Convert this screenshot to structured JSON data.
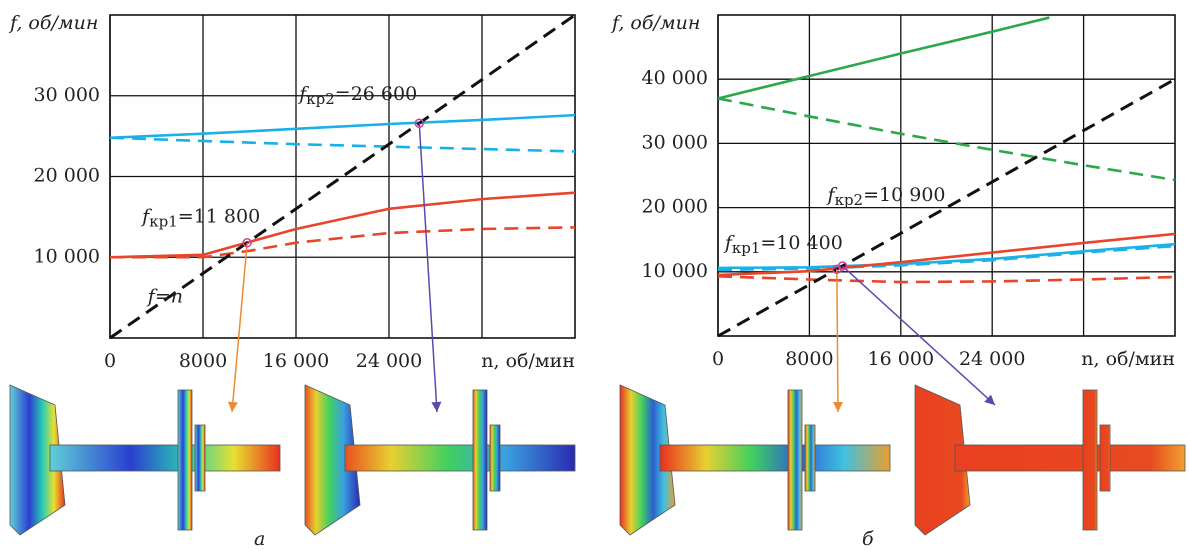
{
  "chart_data": [
    {
      "type": "line",
      "y_label": "f, об/мин",
      "x_label": "n, об/мин",
      "panel_label": "а",
      "xlim": [
        0,
        40000
      ],
      "ylim": [
        0,
        40000
      ],
      "xticks": [
        0,
        8000,
        {
          "value": 16000,
          "label": "16 000"
        },
        {
          "value": 24000,
          "label": "24 000"
        },
        {
          "value": 32000,
          "label": null
        }
      ],
      "yticks": [
        {
          "value": 10000,
          "label": "10 000"
        },
        {
          "value": 20000,
          "label": "20 000"
        },
        {
          "value": 30000,
          "label": "30 000"
        }
      ],
      "grid": true,
      "series": [
        {
          "color": "#1ab0e8",
          "dash": false,
          "x": [
            0,
            8000,
            16000,
            24000,
            32000,
            40000
          ],
          "values": [
            24800,
            25300,
            25900,
            26500,
            27000,
            27600
          ]
        },
        {
          "color": "#1ab0e8",
          "dash": true,
          "x": [
            0,
            8000,
            16000,
            24000,
            32000,
            40000
          ],
          "values": [
            24800,
            24400,
            24000,
            23700,
            23400,
            23100
          ]
        },
        {
          "color": "#e8452a",
          "dash": false,
          "x": [
            0,
            8000,
            12000,
            16000,
            24000,
            32000,
            40000
          ],
          "values": [
            10000,
            10300,
            11900,
            13500,
            16000,
            17200,
            18000
          ]
        },
        {
          "color": "#e8452a",
          "dash": true,
          "x": [
            0,
            8000,
            12000,
            16000,
            24000,
            32000,
            40000
          ],
          "values": [
            10000,
            10000,
            10800,
            11800,
            13000,
            13500,
            13700
          ]
        },
        {
          "name": "f=n",
          "color": "#111111",
          "dash": true,
          "x": [
            0,
            40000
          ],
          "values": [
            0,
            40000
          ]
        }
      ],
      "critical": [
        {
          "symbol": "f",
          "sub": "кр1",
          "value_label": "=11 800",
          "x": 11800,
          "y": 11800
        },
        {
          "symbol": "f",
          "sub": "кр2",
          "value_label": "=26 600",
          "x": 26600,
          "y": 26600
        }
      ]
    },
    {
      "type": "line",
      "y_label": "f, об/мин",
      "x_label": "n, об/мин",
      "panel_label": "б",
      "xlim": [
        0,
        40000
      ],
      "ylim": [
        0,
        50000
      ],
      "xticks": [
        0,
        8000,
        {
          "value": 16000,
          "label": "16 000"
        },
        {
          "value": 24000,
          "label": "24 000"
        },
        {
          "value": 32000,
          "label": null
        }
      ],
      "yticks": [
        {
          "value": 10000,
          "label": "10 000"
        },
        {
          "value": 20000,
          "label": "20 000"
        },
        {
          "value": 30000,
          "label": "30 000"
        },
        {
          "value": 40000,
          "label": "40 000"
        }
      ],
      "grid": true,
      "series": [
        {
          "color": "#2aa84a",
          "dash": false,
          "x": [
            0,
            8000,
            16000,
            24000,
            29000
          ],
          "values": [
            37000,
            40500,
            44000,
            47400,
            49600
          ]
        },
        {
          "color": "#2aa84a",
          "dash": true,
          "x": [
            0,
            8000,
            16000,
            24000,
            32000,
            40000
          ],
          "values": [
            37000,
            34200,
            31500,
            29000,
            26600,
            24300
          ]
        },
        {
          "color": "#1ab0e8",
          "dash": false,
          "x": [
            0,
            8000,
            16000,
            24000,
            32000,
            40000
          ],
          "values": [
            10600,
            10700,
            11200,
            12000,
            13200,
            14300
          ]
        },
        {
          "color": "#1ab0e8",
          "dash": true,
          "x": [
            0,
            8000,
            16000,
            24000,
            32000,
            40000
          ],
          "values": [
            10300,
            10500,
            11000,
            11800,
            13000,
            14000
          ]
        },
        {
          "color": "#e8452a",
          "dash": false,
          "x": [
            0,
            8000,
            16000,
            24000,
            32000,
            40000
          ],
          "values": [
            9500,
            10100,
            11500,
            13000,
            14500,
            15900
          ]
        },
        {
          "color": "#e8452a",
          "dash": true,
          "x": [
            0,
            8000,
            16000,
            24000,
            32000,
            40000
          ],
          "values": [
            9300,
            8800,
            8400,
            8500,
            8800,
            9200
          ]
        },
        {
          "color": "#111111",
          "dash": true,
          "x": [
            0,
            40000
          ],
          "values": [
            0,
            40000
          ]
        }
      ],
      "critical": [
        {
          "symbol": "f",
          "sub": "кр1",
          "value_label": "=10 400",
          "x": 10400,
          "y": 10400
        },
        {
          "symbol": "f",
          "sub": "кр2",
          "value_label": "=10 900",
          "x": 10900,
          "y": 10900
        }
      ]
    }
  ]
}
